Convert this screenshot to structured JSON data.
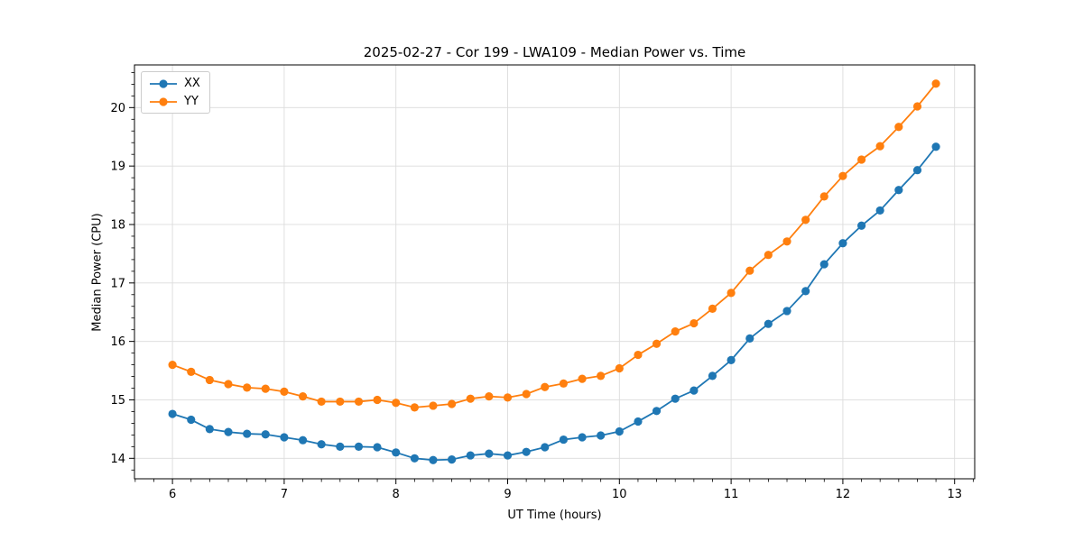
{
  "chart_data": {
    "type": "line",
    "title": "2025-02-27 - Cor 199 - LWA109 - Median Power vs. Time",
    "xlabel": "UT Time (hours)",
    "ylabel": "Median Power (CPU)",
    "xlim": [
      5.66,
      13.18
    ],
    "ylim": [
      13.65,
      20.73
    ],
    "x_ticks": [
      6,
      7,
      8,
      9,
      10,
      11,
      12,
      13
    ],
    "y_ticks": [
      14,
      15,
      16,
      17,
      18,
      19,
      20
    ],
    "x_minor_step": 0.166667,
    "y_minor_step": 0.2,
    "grid": true,
    "grid_color": "#dcdcdc",
    "legend_position": "upper left",
    "x": [
      6.0,
      6.167,
      6.333,
      6.5,
      6.667,
      6.833,
      7.0,
      7.167,
      7.333,
      7.5,
      7.667,
      7.833,
      8.0,
      8.167,
      8.333,
      8.5,
      8.667,
      8.833,
      9.0,
      9.167,
      9.333,
      9.5,
      9.667,
      9.833,
      10.0,
      10.167,
      10.333,
      10.5,
      10.667,
      10.833,
      11.0,
      11.167,
      11.333,
      11.5,
      11.667,
      11.833,
      12.0,
      12.167,
      12.333,
      12.5,
      12.667,
      12.833
    ],
    "series": [
      {
        "name": "XX",
        "color": "#1f77b4",
        "values": [
          14.76,
          14.66,
          14.5,
          14.45,
          14.42,
          14.41,
          14.36,
          14.31,
          14.24,
          14.2,
          14.2,
          14.19,
          14.1,
          14.0,
          13.97,
          13.98,
          14.05,
          14.08,
          14.05,
          14.11,
          14.19,
          14.32,
          14.36,
          14.39,
          14.46,
          14.63,
          14.81,
          15.02,
          15.16,
          15.41,
          15.68,
          16.05,
          16.3,
          16.52,
          16.86,
          17.32,
          17.68,
          17.98,
          18.24,
          18.59,
          18.93,
          19.33
        ]
      },
      {
        "name": "YY",
        "color": "#ff7f0e",
        "values": [
          15.6,
          15.48,
          15.34,
          15.27,
          15.21,
          15.19,
          15.14,
          15.06,
          14.97,
          14.97,
          14.97,
          15.0,
          14.95,
          14.87,
          14.9,
          14.93,
          15.02,
          15.06,
          15.04,
          15.1,
          15.22,
          15.28,
          15.36,
          15.41,
          15.54,
          15.77,
          15.96,
          16.17,
          16.31,
          16.56,
          16.83,
          17.21,
          17.48,
          17.71,
          18.08,
          18.48,
          18.83,
          19.11,
          19.34,
          19.67,
          20.02,
          20.41
        ]
      }
    ]
  }
}
